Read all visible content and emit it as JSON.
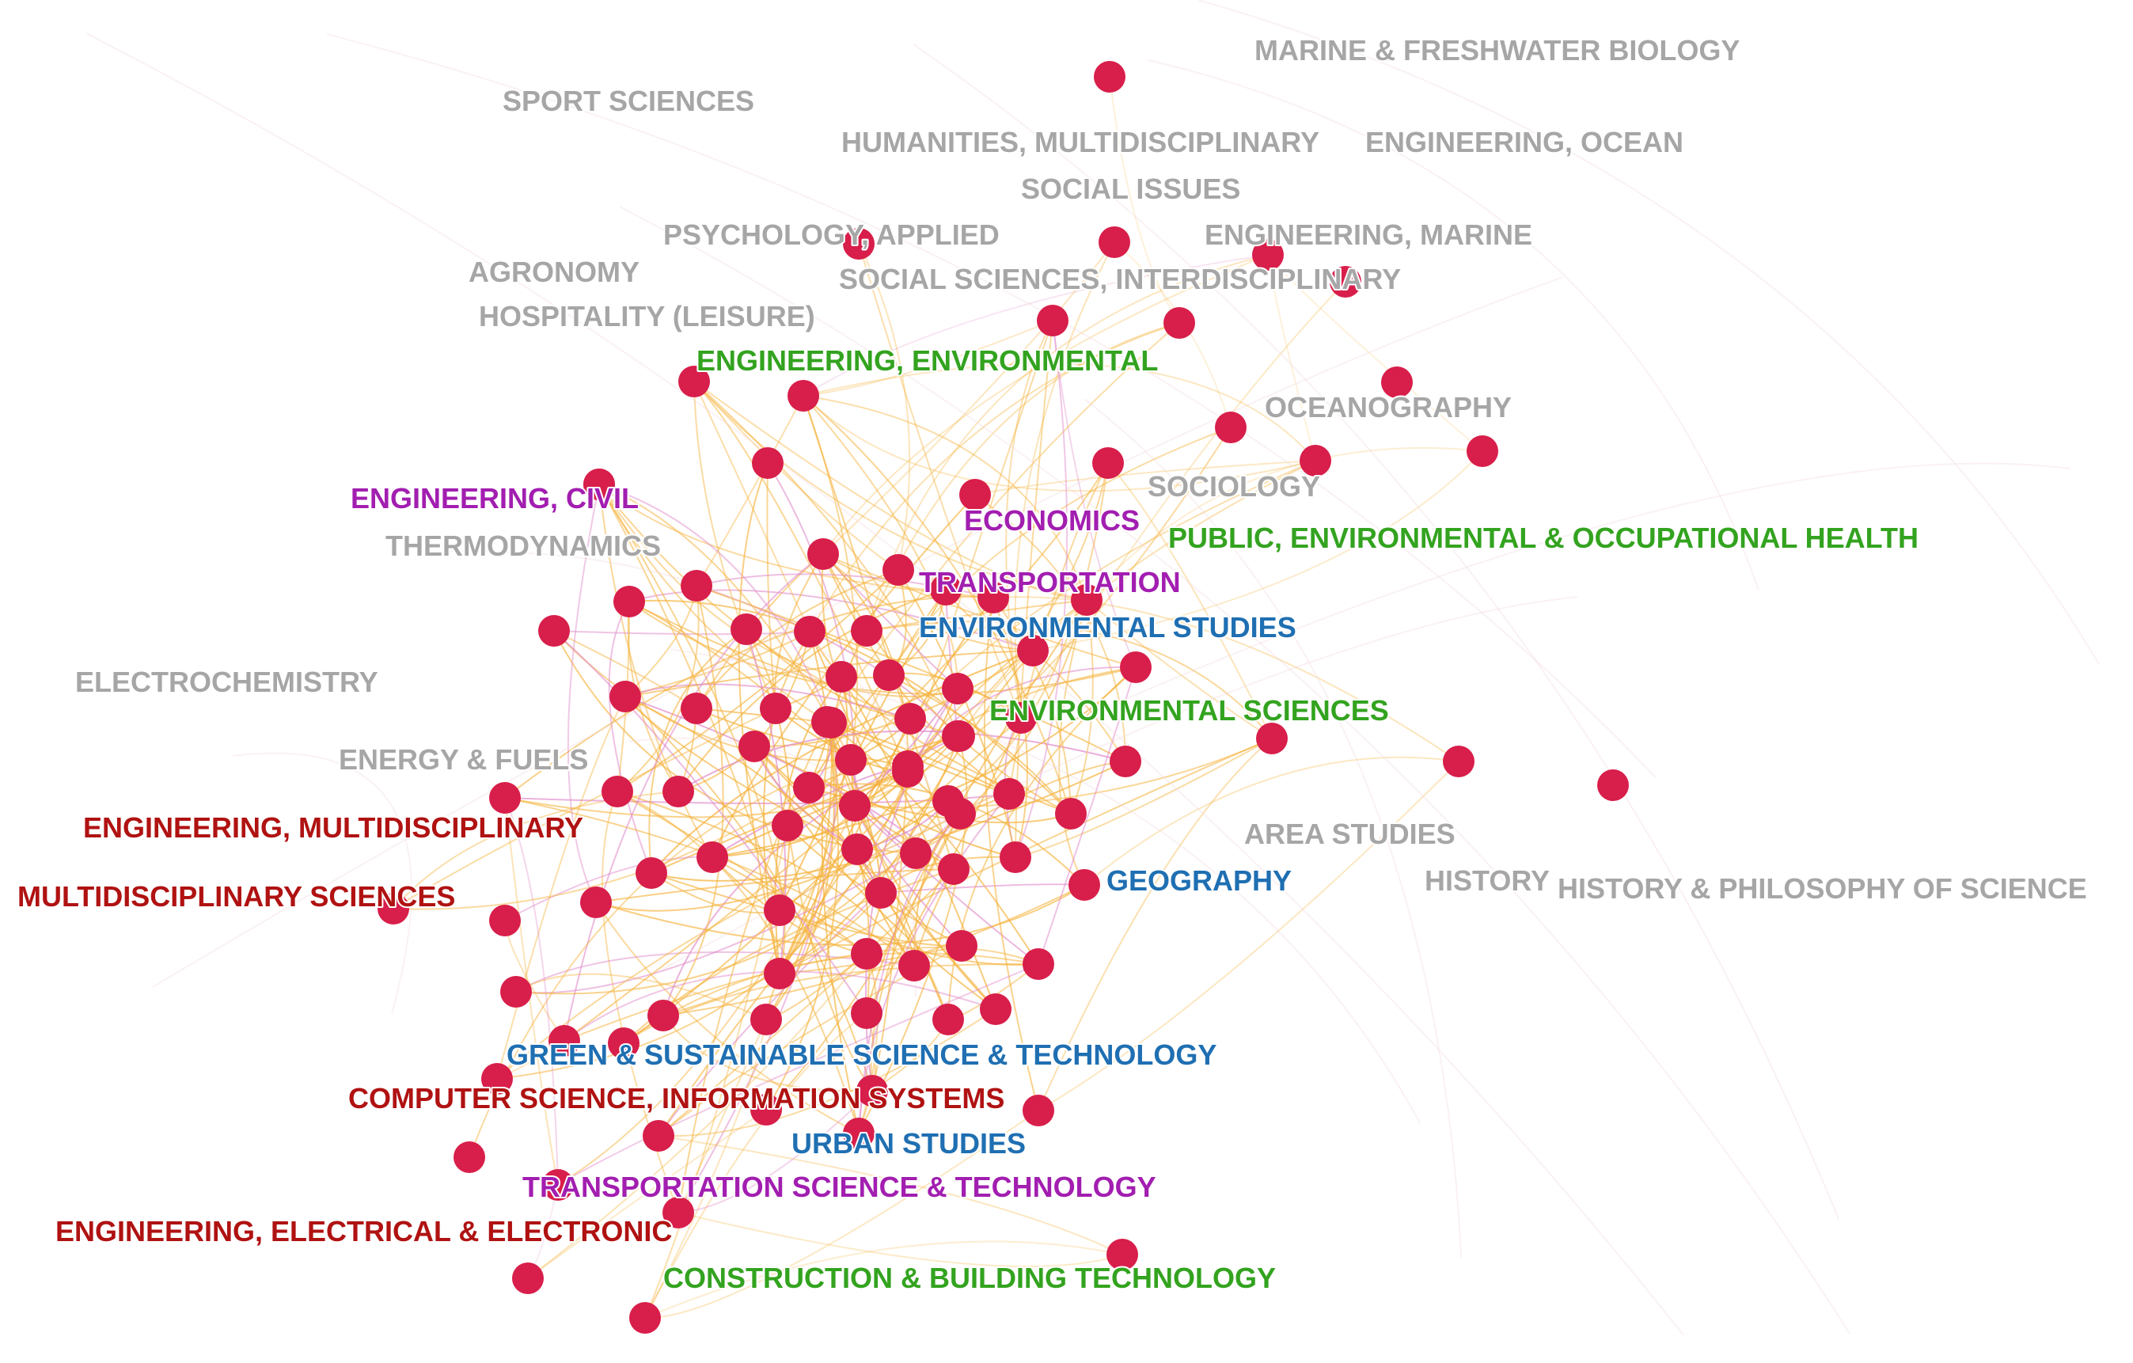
{
  "colors": {
    "node": "#d81e4a",
    "edge_main": "#f5b23a",
    "edge_alt": "#e089c9",
    "gray": "#a6a6a6",
    "green": "#33a31f",
    "purple": "#a21eb0",
    "red": "#b01212",
    "blue": "#1f6fb2"
  },
  "labels": [
    {
      "id": "marine",
      "text": "MARINE & FRESHWATER BIOLOGY",
      "group": "gray"
    },
    {
      "id": "sport",
      "text": "SPORT SCIENCES",
      "group": "gray"
    },
    {
      "id": "humanities",
      "text": "HUMANITIES, MULTIDISCIPLINARY",
      "group": "gray"
    },
    {
      "id": "eng-ocean",
      "text": "ENGINEERING, OCEAN",
      "group": "gray"
    },
    {
      "id": "social-issues",
      "text": "SOCIAL ISSUES",
      "group": "gray"
    },
    {
      "id": "psych",
      "text": "PSYCHOLOGY, APPLIED",
      "group": "gray"
    },
    {
      "id": "eng-marine",
      "text": "ENGINEERING, MARINE",
      "group": "gray"
    },
    {
      "id": "agronomy",
      "text": "AGRONOMY",
      "group": "gray"
    },
    {
      "id": "social-sci",
      "text": "SOCIAL SCIENCES, INTERDISCIPLINARY",
      "group": "gray"
    },
    {
      "id": "hospitality",
      "text": "HOSPITALITY (LEISURE)",
      "group": "gray"
    },
    {
      "id": "eng-env",
      "text": "ENGINEERING, ENVIRONMENTAL",
      "group": "green"
    },
    {
      "id": "oceanography",
      "text": "OCEANOGRAPHY",
      "group": "gray"
    },
    {
      "id": "sociology",
      "text": "SOCIOLOGY",
      "group": "gray"
    },
    {
      "id": "eng-civil",
      "text": "ENGINEERING, CIVIL",
      "group": "purple"
    },
    {
      "id": "economics",
      "text": "ECONOMICS",
      "group": "purple"
    },
    {
      "id": "public-health",
      "text": "PUBLIC, ENVIRONMENTAL & OCCUPATIONAL HEALTH",
      "group": "green"
    },
    {
      "id": "thermo",
      "text": "THERMODYNAMICS",
      "group": "gray"
    },
    {
      "id": "transport",
      "text": "TRANSPORTATION",
      "group": "purple"
    },
    {
      "id": "env-studies",
      "text": "ENVIRONMENTAL STUDIES",
      "group": "blue"
    },
    {
      "id": "electrochem",
      "text": "ELECTROCHEMISTRY",
      "group": "gray"
    },
    {
      "id": "env-sci",
      "text": "ENVIRONMENTAL SCIENCES",
      "group": "green"
    },
    {
      "id": "energy",
      "text": "ENERGY & FUELS",
      "group": "gray"
    },
    {
      "id": "eng-multi",
      "text": "ENGINEERING, MULTIDISCIPLINARY",
      "group": "red"
    },
    {
      "id": "area",
      "text": "AREA STUDIES",
      "group": "gray"
    },
    {
      "id": "geography",
      "text": "GEOGRAPHY",
      "group": "blue"
    },
    {
      "id": "history",
      "text": "HISTORY",
      "group": "gray"
    },
    {
      "id": "hps",
      "text": "HISTORY & PHILOSOPHY OF SCIENCE",
      "group": "gray"
    },
    {
      "id": "multi-sci",
      "text": "MULTIDISCIPLINARY SCIENCES",
      "group": "red"
    },
    {
      "id": "green-sust",
      "text": "GREEN & SUSTAINABLE SCIENCE & TECHNOLOGY",
      "group": "blue"
    },
    {
      "id": "cs-info",
      "text": "COMPUTER SCIENCE, INFORMATION SYSTEMS",
      "group": "red"
    },
    {
      "id": "urban",
      "text": "URBAN STUDIES",
      "group": "blue"
    },
    {
      "id": "trans-sci",
      "text": "TRANSPORTATION SCIENCE & TECHNOLOGY",
      "group": "purple"
    },
    {
      "id": "eng-elec",
      "text": "ENGINEERING, ELECTRICAL & ELECTRONIC",
      "group": "red"
    },
    {
      "id": "construction",
      "text": "CONSTRUCTION & BUILDING TECHNOLOGY",
      "group": "green"
    }
  ]
}
